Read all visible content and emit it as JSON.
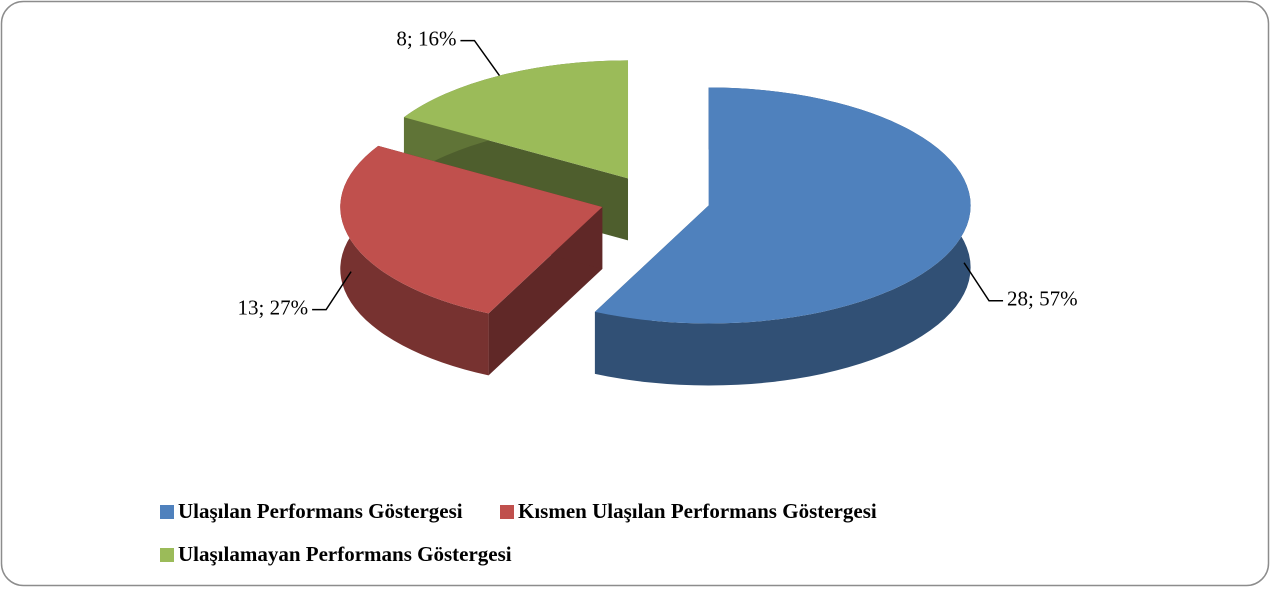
{
  "chart_data": {
    "type": "pie3d",
    "categories": [
      "Ulaşılan Performans Göstergesi",
      "Kısmen Ulaşılan Performans Göstergesi",
      "Ulaşılamayan Performans Göstergesi"
    ],
    "values": [
      28,
      13,
      8
    ],
    "value_labels": [
      "28; 57%",
      "13; 27%",
      "8; 16%"
    ],
    "colors": [
      "#4f81bd",
      "#c0504d",
      "#9bbb59"
    ],
    "legend": "bottom"
  }
}
